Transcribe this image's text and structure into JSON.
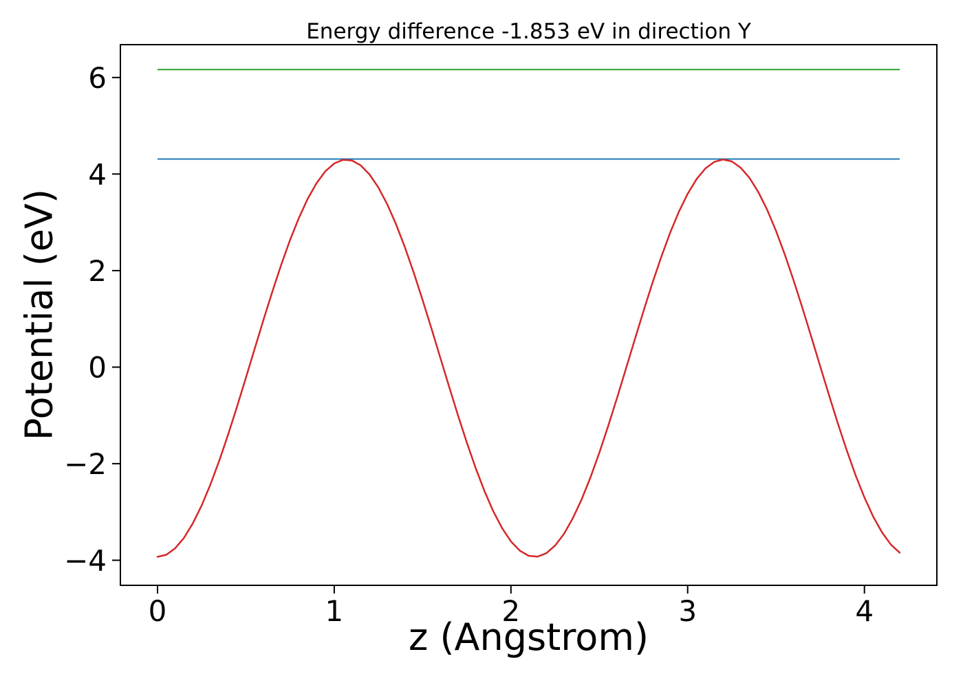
{
  "chart_data": {
    "type": "line",
    "title": "Energy difference -1.853 eV in direction Y",
    "xlabel": "z (Angstrom)",
    "ylabel": "Potential (eV)",
    "xlim": [
      -0.21,
      4.41
    ],
    "ylim": [
      -4.52,
      6.68
    ],
    "xticks": [
      0,
      1,
      2,
      3,
      4
    ],
    "xtick_labels": [
      "0",
      "1",
      "2",
      "3",
      "4"
    ],
    "yticks": [
      -4,
      -2,
      0,
      2,
      4,
      6
    ],
    "ytick_labels": [
      "−4",
      "−2",
      "0",
      "2",
      "4",
      "6"
    ],
    "grid": false,
    "legend": "none",
    "energy_difference_eV": -1.853,
    "direction": "Y",
    "series": [
      {
        "name": "vacuum-energy-level",
        "type": "hline",
        "color": "#2ca02c",
        "y": 6.163,
        "x_range": [
          0,
          4.2
        ]
      },
      {
        "name": "potential-maximum-level",
        "type": "hline",
        "color": "#1f77b4",
        "y": 4.31,
        "x_range": [
          0,
          4.2
        ]
      },
      {
        "name": "potential-profile",
        "type": "curve",
        "color": "#d62728",
        "x_start": 0,
        "x_step": 0.05,
        "values": [
          -3.93,
          -3.886,
          -3.753,
          -3.536,
          -3.237,
          -2.865,
          -2.428,
          -1.933,
          -1.395,
          -0.819,
          -0.223,
          0.382,
          0.982,
          1.566,
          2.119,
          2.631,
          3.09,
          3.486,
          3.811,
          4.057,
          4.219,
          4.295,
          4.281,
          4.179,
          3.991,
          3.721,
          3.373,
          2.958,
          2.481,
          1.956,
          1.393,
          0.803,
          0.2,
          -0.404,
          -0.994,
          -1.56,
          -2.087,
          -2.566,
          -2.986,
          -3.336,
          -3.61,
          -3.802,
          -3.908,
          -3.926,
          -3.855,
          -3.696,
          -3.454,
          -3.133,
          -2.74,
          -2.284,
          -1.774,
          -1.223,
          -0.641,
          -0.041,
          0.564,
          1.16,
          1.735,
          2.277,
          2.775,
          3.217,
          3.59,
          3.893,
          4.114,
          4.251,
          4.3,
          4.26,
          4.131,
          3.918,
          3.624,
          3.256,
          2.82,
          2.329,
          1.79,
          1.218,
          0.622,
          0.017,
          -0.584,
          -1.168,
          -1.724,
          -2.239,
          -2.7,
          -3.098,
          -3.426,
          -3.677,
          -3.843
        ]
      }
    ]
  }
}
